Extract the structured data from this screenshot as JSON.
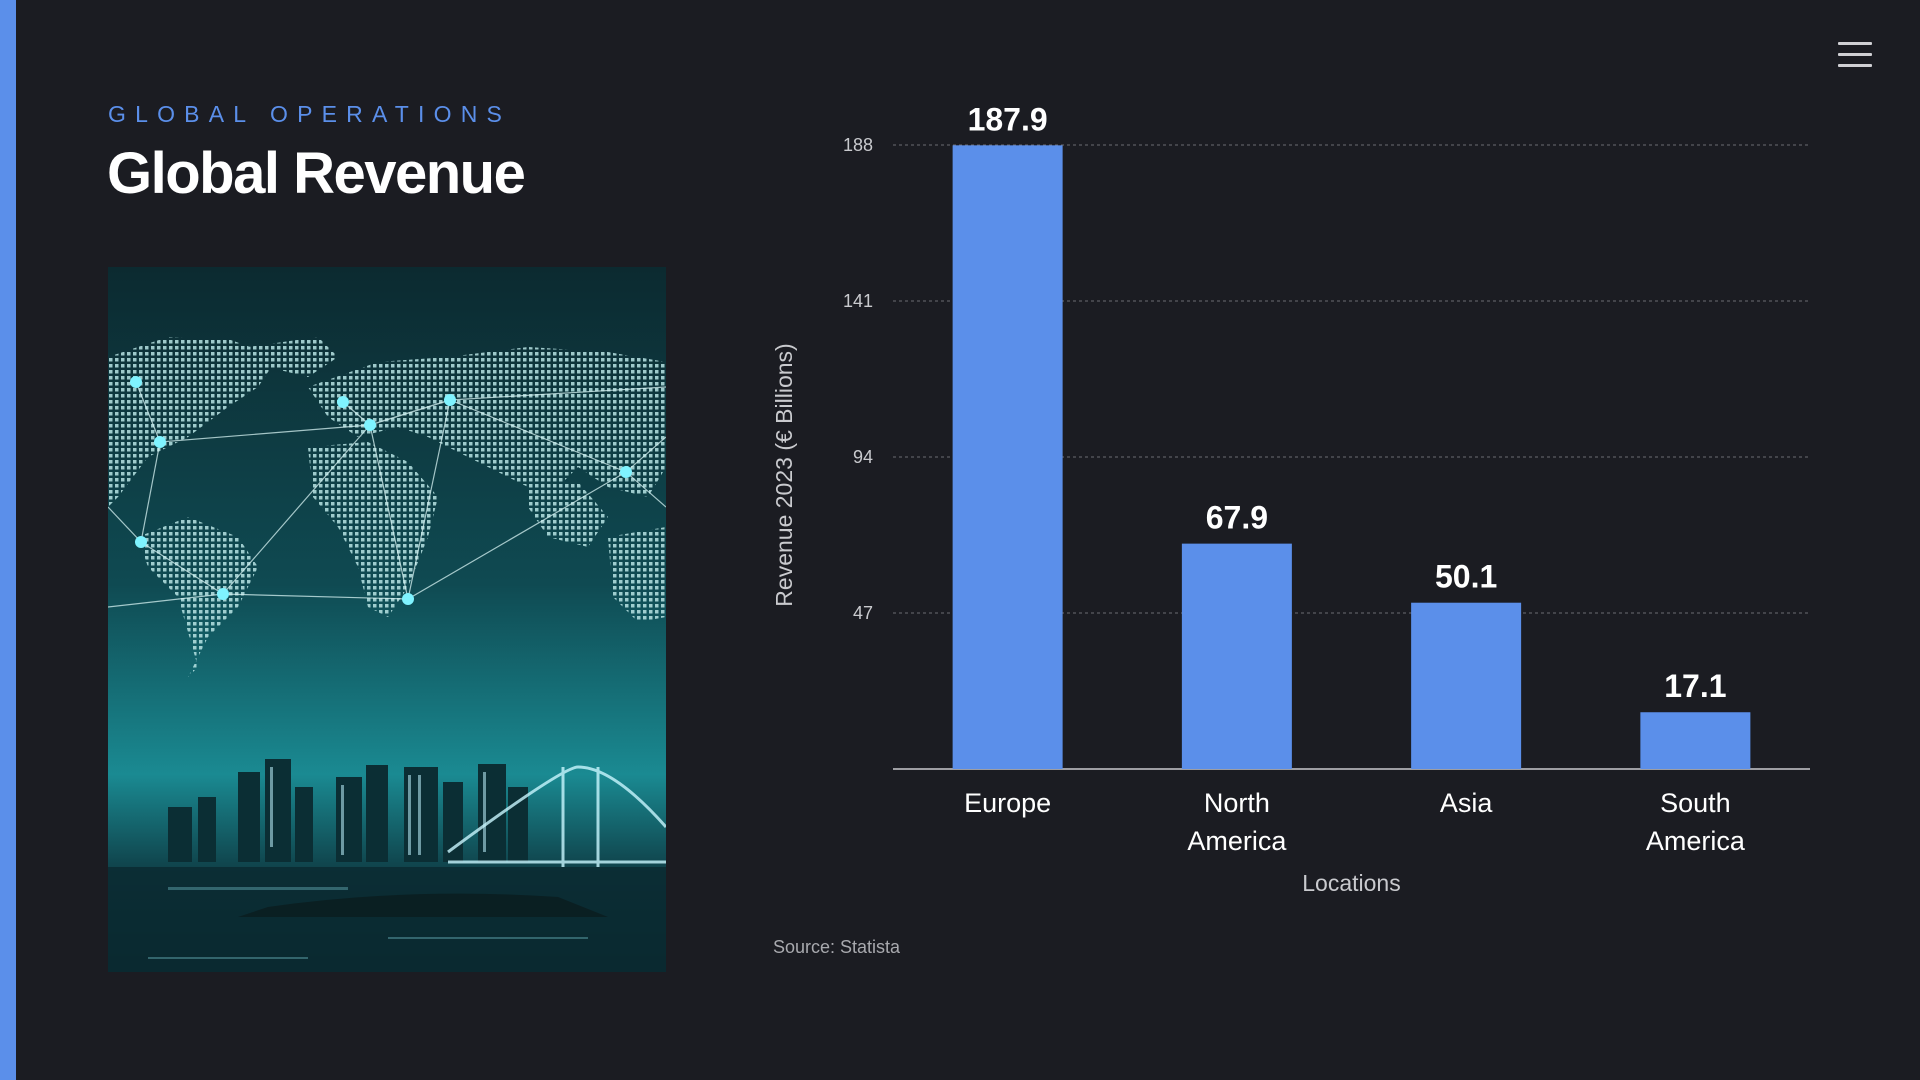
{
  "header": {
    "eyebrow": "GLOBAL OPERATIONS",
    "title": "Global Revenue"
  },
  "menu": {
    "icon": "hamburger-menu-icon"
  },
  "image": {
    "subject": "world-map-network-city-skyline"
  },
  "source": "Source: Statista",
  "colors": {
    "background": "#1b1c22",
    "accent": "#5b8fea",
    "bar": "#5b8fea",
    "text": "#ffffff",
    "muted": "#a8a9ae"
  },
  "chart_data": {
    "type": "bar",
    "categories": [
      [
        "Europe"
      ],
      [
        "North",
        "America"
      ],
      [
        "Asia"
      ],
      [
        "South",
        "America"
      ]
    ],
    "values": [
      187.9,
      67.9,
      50.1,
      17.1
    ],
    "value_labels": [
      "187.9",
      "67.9",
      "50.1",
      "17.1"
    ],
    "ylabel": "Revenue 2023 (€ Billions)",
    "xlabel": "Locations",
    "yticks": [
      47,
      94,
      141,
      188
    ],
    "ylim": [
      0,
      188
    ],
    "grid": true,
    "legend": "none"
  }
}
